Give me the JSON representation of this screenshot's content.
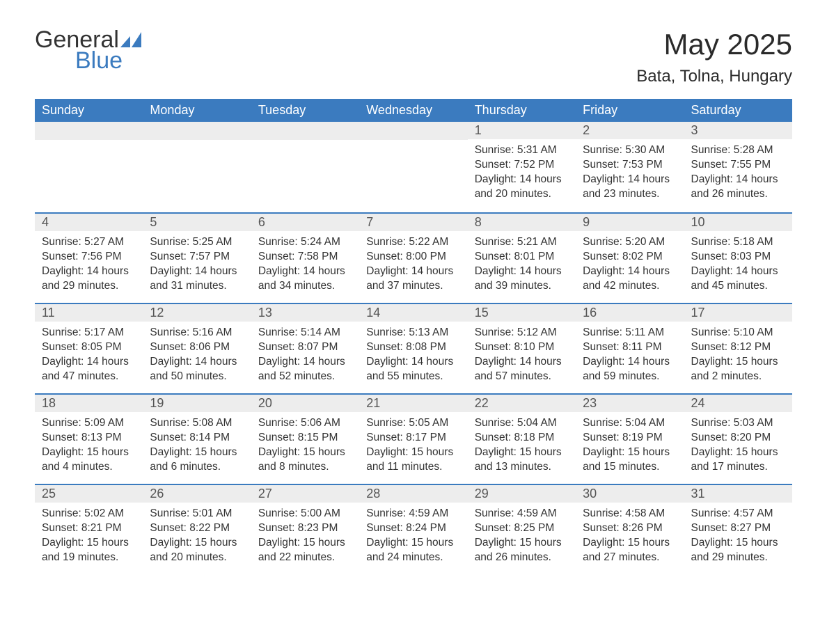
{
  "brand": {
    "word1": "General",
    "word2": "Blue",
    "word1_color": "#333333",
    "word2_color": "#3b7bbf",
    "icon_color": "#3b7bbf"
  },
  "title": "May 2025",
  "location": "Bata, Tolna, Hungary",
  "colors": {
    "header_bg": "#3b7bbf",
    "header_text": "#ffffff",
    "daynum_bg": "#ededed",
    "daynum_border": "#3b7bbf",
    "body_text": "#333333",
    "page_bg": "#ffffff"
  },
  "typography": {
    "title_fontsize": 42,
    "location_fontsize": 24,
    "weekday_fontsize": 18,
    "daynum_fontsize": 18,
    "body_fontsize": 15.5
  },
  "calendar": {
    "weekdays": [
      "Sunday",
      "Monday",
      "Tuesday",
      "Wednesday",
      "Thursday",
      "Friday",
      "Saturday"
    ],
    "weeks": [
      [
        null,
        null,
        null,
        null,
        {
          "n": "1",
          "sunrise": "5:31 AM",
          "sunset": "7:52 PM",
          "daylight": "14 hours and 20 minutes."
        },
        {
          "n": "2",
          "sunrise": "5:30 AM",
          "sunset": "7:53 PM",
          "daylight": "14 hours and 23 minutes."
        },
        {
          "n": "3",
          "sunrise": "5:28 AM",
          "sunset": "7:55 PM",
          "daylight": "14 hours and 26 minutes."
        }
      ],
      [
        {
          "n": "4",
          "sunrise": "5:27 AM",
          "sunset": "7:56 PM",
          "daylight": "14 hours and 29 minutes."
        },
        {
          "n": "5",
          "sunrise": "5:25 AM",
          "sunset": "7:57 PM",
          "daylight": "14 hours and 31 minutes."
        },
        {
          "n": "6",
          "sunrise": "5:24 AM",
          "sunset": "7:58 PM",
          "daylight": "14 hours and 34 minutes."
        },
        {
          "n": "7",
          "sunrise": "5:22 AM",
          "sunset": "8:00 PM",
          "daylight": "14 hours and 37 minutes."
        },
        {
          "n": "8",
          "sunrise": "5:21 AM",
          "sunset": "8:01 PM",
          "daylight": "14 hours and 39 minutes."
        },
        {
          "n": "9",
          "sunrise": "5:20 AM",
          "sunset": "8:02 PM",
          "daylight": "14 hours and 42 minutes."
        },
        {
          "n": "10",
          "sunrise": "5:18 AM",
          "sunset": "8:03 PM",
          "daylight": "14 hours and 45 minutes."
        }
      ],
      [
        {
          "n": "11",
          "sunrise": "5:17 AM",
          "sunset": "8:05 PM",
          "daylight": "14 hours and 47 minutes."
        },
        {
          "n": "12",
          "sunrise": "5:16 AM",
          "sunset": "8:06 PM",
          "daylight": "14 hours and 50 minutes."
        },
        {
          "n": "13",
          "sunrise": "5:14 AM",
          "sunset": "8:07 PM",
          "daylight": "14 hours and 52 minutes."
        },
        {
          "n": "14",
          "sunrise": "5:13 AM",
          "sunset": "8:08 PM",
          "daylight": "14 hours and 55 minutes."
        },
        {
          "n": "15",
          "sunrise": "5:12 AM",
          "sunset": "8:10 PM",
          "daylight": "14 hours and 57 minutes."
        },
        {
          "n": "16",
          "sunrise": "5:11 AM",
          "sunset": "8:11 PM",
          "daylight": "14 hours and 59 minutes."
        },
        {
          "n": "17",
          "sunrise": "5:10 AM",
          "sunset": "8:12 PM",
          "daylight": "15 hours and 2 minutes."
        }
      ],
      [
        {
          "n": "18",
          "sunrise": "5:09 AM",
          "sunset": "8:13 PM",
          "daylight": "15 hours and 4 minutes."
        },
        {
          "n": "19",
          "sunrise": "5:08 AM",
          "sunset": "8:14 PM",
          "daylight": "15 hours and 6 minutes."
        },
        {
          "n": "20",
          "sunrise": "5:06 AM",
          "sunset": "8:15 PM",
          "daylight": "15 hours and 8 minutes."
        },
        {
          "n": "21",
          "sunrise": "5:05 AM",
          "sunset": "8:17 PM",
          "daylight": "15 hours and 11 minutes."
        },
        {
          "n": "22",
          "sunrise": "5:04 AM",
          "sunset": "8:18 PM",
          "daylight": "15 hours and 13 minutes."
        },
        {
          "n": "23",
          "sunrise": "5:04 AM",
          "sunset": "8:19 PM",
          "daylight": "15 hours and 15 minutes."
        },
        {
          "n": "24",
          "sunrise": "5:03 AM",
          "sunset": "8:20 PM",
          "daylight": "15 hours and 17 minutes."
        }
      ],
      [
        {
          "n": "25",
          "sunrise": "5:02 AM",
          "sunset": "8:21 PM",
          "daylight": "15 hours and 19 minutes."
        },
        {
          "n": "26",
          "sunrise": "5:01 AM",
          "sunset": "8:22 PM",
          "daylight": "15 hours and 20 minutes."
        },
        {
          "n": "27",
          "sunrise": "5:00 AM",
          "sunset": "8:23 PM",
          "daylight": "15 hours and 22 minutes."
        },
        {
          "n": "28",
          "sunrise": "4:59 AM",
          "sunset": "8:24 PM",
          "daylight": "15 hours and 24 minutes."
        },
        {
          "n": "29",
          "sunrise": "4:59 AM",
          "sunset": "8:25 PM",
          "daylight": "15 hours and 26 minutes."
        },
        {
          "n": "30",
          "sunrise": "4:58 AM",
          "sunset": "8:26 PM",
          "daylight": "15 hours and 27 minutes."
        },
        {
          "n": "31",
          "sunrise": "4:57 AM",
          "sunset": "8:27 PM",
          "daylight": "15 hours and 29 minutes."
        }
      ]
    ],
    "labels": {
      "sunrise": "Sunrise:",
      "sunset": "Sunset:",
      "daylight": "Daylight:"
    }
  }
}
